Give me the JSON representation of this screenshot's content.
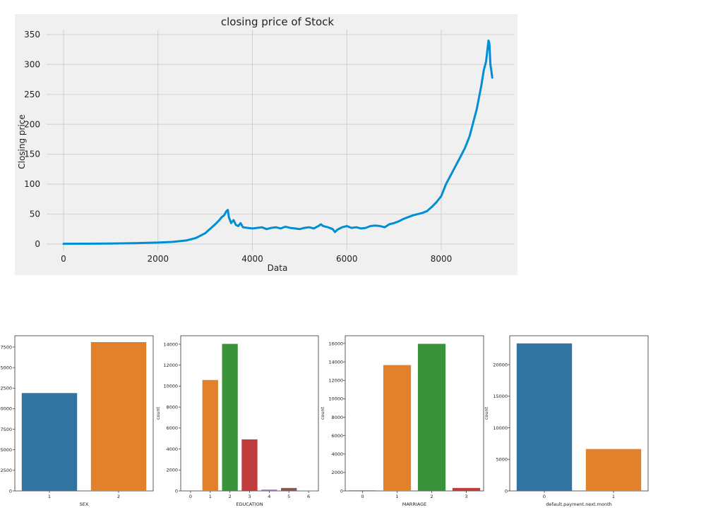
{
  "chart_data": [
    {
      "type": "line",
      "title": "closing price of Stock",
      "xlabel": "Data",
      "ylabel": "Closing price",
      "xlim": [
        -1000,
        9550
      ],
      "ylim": [
        -10,
        357
      ],
      "xticks": [
        0,
        2000,
        4000,
        6000,
        8000
      ],
      "yticks": [
        0,
        50,
        100,
        150,
        200,
        250,
        300,
        350
      ],
      "grid": true,
      "colors": {
        "line": "#008fd5",
        "background": "#f0f0f0",
        "grid": "#d0d0d0"
      },
      "series": [
        {
          "x": [
            0,
            500,
            1000,
            1500,
            2000,
            2300,
            2600,
            2800,
            3000,
            3100,
            3200,
            3300,
            3350,
            3400,
            3450,
            3480,
            3500,
            3550,
            3600,
            3650,
            3700,
            3750,
            3800,
            3900,
            4000,
            4100,
            4200,
            4300,
            4400,
            4500,
            4600,
            4700,
            4800,
            4900,
            5000,
            5100,
            5200,
            5300,
            5400,
            5450,
            5500,
            5600,
            5700,
            5750,
            5800,
            5900,
            6000,
            6100,
            6200,
            6300,
            6400,
            6500,
            6600,
            6700,
            6800,
            6900,
            7000,
            7100,
            7200,
            7300,
            7400,
            7500,
            7600,
            7700,
            7800,
            7900,
            8000,
            8100,
            8200,
            8300,
            8400,
            8500,
            8600,
            8650,
            8700,
            8750,
            8800,
            8850,
            8900,
            8950,
            9000,
            9020,
            9040,
            9060,
            9080
          ],
          "y": [
            0.5,
            0.6,
            0.8,
            1.5,
            2.5,
            3.5,
            6,
            10,
            18,
            25,
            32,
            40,
            45,
            48,
            55,
            57,
            45,
            35,
            40,
            32,
            30,
            35,
            28,
            27,
            26,
            27,
            28,
            25,
            27,
            28,
            26,
            29,
            27,
            26,
            25,
            27,
            28,
            26,
            30,
            33,
            30,
            28,
            25,
            20,
            24,
            28,
            30,
            27,
            28,
            26,
            27,
            30,
            31,
            30,
            28,
            33,
            35,
            38,
            42,
            45,
            48,
            50,
            52,
            55,
            62,
            70,
            80,
            100,
            115,
            130,
            145,
            160,
            180,
            195,
            210,
            225,
            245,
            265,
            290,
            305,
            340,
            335,
            300,
            290,
            278
          ]
        }
      ]
    },
    {
      "type": "bar",
      "categories": [
        "1",
        "2"
      ],
      "values": [
        11900,
        18100
      ],
      "xlabel": "SEX",
      "ylabel": "",
      "ylim": [
        0,
        19000
      ],
      "yticks": [
        0,
        2500,
        5000,
        7500,
        10000,
        12500,
        15000,
        17500
      ],
      "ytick_labels": [
        "0",
        "2500",
        "5000",
        "7500",
        "10000",
        "12500",
        "15000",
        "17500"
      ],
      "colors": [
        "#3274a1",
        "#e1812c"
      ]
    },
    {
      "type": "bar",
      "categories": [
        "0",
        "1",
        "2",
        "3",
        "4",
        "5",
        "6"
      ],
      "values": [
        14,
        10585,
        14030,
        4917,
        123,
        280,
        51
      ],
      "xlabel": "EDUCATION",
      "ylabel": "count",
      "ylim": [
        0,
        14700
      ],
      "yticks": [
        0,
        2000,
        4000,
        6000,
        8000,
        10000,
        12000,
        14000
      ],
      "colors": [
        "#3274a1",
        "#e1812c",
        "#3a923a",
        "#c03d3e",
        "#9372b2",
        "#845b53",
        "#d684bd"
      ]
    },
    {
      "type": "bar",
      "categories": [
        "0",
        "1",
        "2",
        "3"
      ],
      "values": [
        54,
        13659,
        15964,
        323
      ],
      "xlabel": "MARRIAGE",
      "ylabel": "count",
      "ylim": [
        0,
        16750
      ],
      "yticks": [
        0,
        2000,
        4000,
        6000,
        8000,
        10000,
        12000,
        14000,
        16000
      ],
      "colors": [
        "#3274a1",
        "#e1812c",
        "#3a923a",
        "#c03d3e"
      ]
    },
    {
      "type": "bar",
      "categories": [
        "0",
        "1"
      ],
      "values": [
        23364,
        6636
      ],
      "xlabel": "default.payment.next.month",
      "ylabel": "count",
      "ylim": [
        0,
        24500
      ],
      "yticks": [
        0,
        5000,
        10000,
        15000,
        20000
      ],
      "colors": [
        "#3274a1",
        "#e1812c"
      ]
    }
  ]
}
